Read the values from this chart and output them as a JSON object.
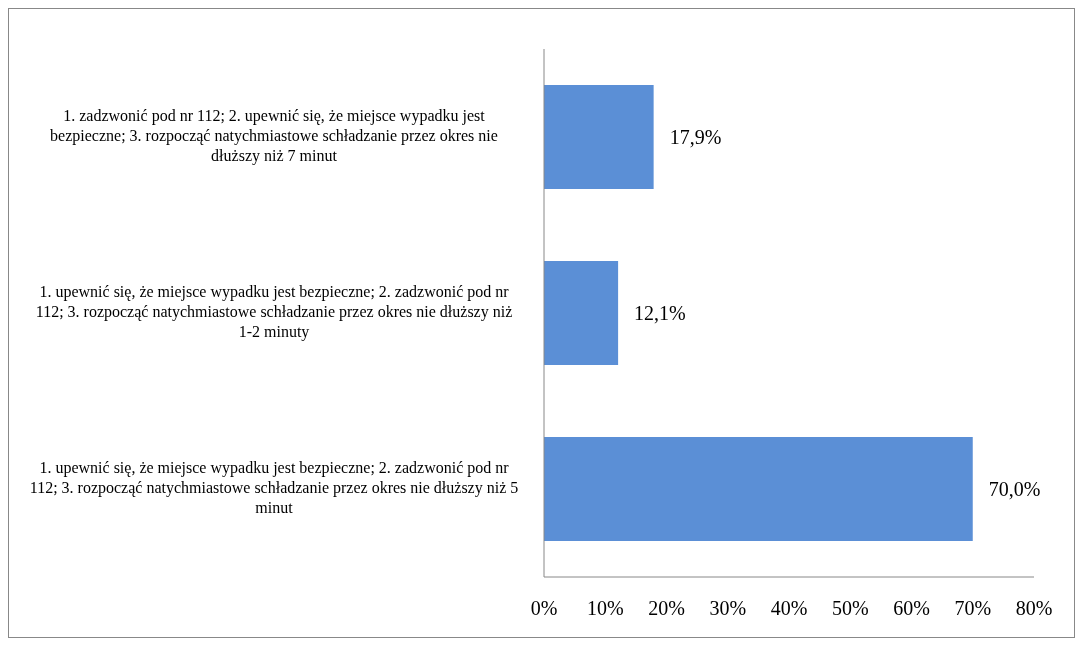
{
  "chart_data": {
    "type": "bar",
    "orientation": "horizontal",
    "categories": [
      "1. zadzwonić pod nr 112; 2. upewnić się, że miejsce wypadku jest bezpieczne; 3. rozpocząć natychmiastowe schładzanie przez okres nie dłuższy niż 7 minut",
      "1. upewnić się, że miejsce wypadku jest bezpieczne; 2. zadzwonić pod nr 112; 3. rozpocząć natychmiastowe schładzanie przez okres nie dłuższy niż 1-2 minuty",
      "1. upewnić się, że miejsce wypadku jest bezpieczne; 2. zadzwonić pod nr 112; 3. rozpocząć natychmiastowe schładzanie przez okres nie dłuższy niż 5 minut"
    ],
    "values": [
      17.9,
      12.1,
      70.0
    ],
    "value_labels": [
      "17,9%",
      "12,1%",
      "70,0%"
    ],
    "color": "#5b8fd6",
    "xlim": [
      0,
      80
    ],
    "xticks": [
      {
        "value": 0,
        "label": "0%"
      },
      {
        "value": 10,
        "label": "10%"
      },
      {
        "value": 20,
        "label": "20%"
      },
      {
        "value": 30,
        "label": "30%"
      },
      {
        "value": 40,
        "label": "40%"
      },
      {
        "value": 50,
        "label": "50%"
      },
      {
        "value": 60,
        "label": "60%"
      },
      {
        "value": 70,
        "label": "70%"
      },
      {
        "value": 80,
        "label": "80%"
      }
    ],
    "grid": false,
    "legend": false
  }
}
